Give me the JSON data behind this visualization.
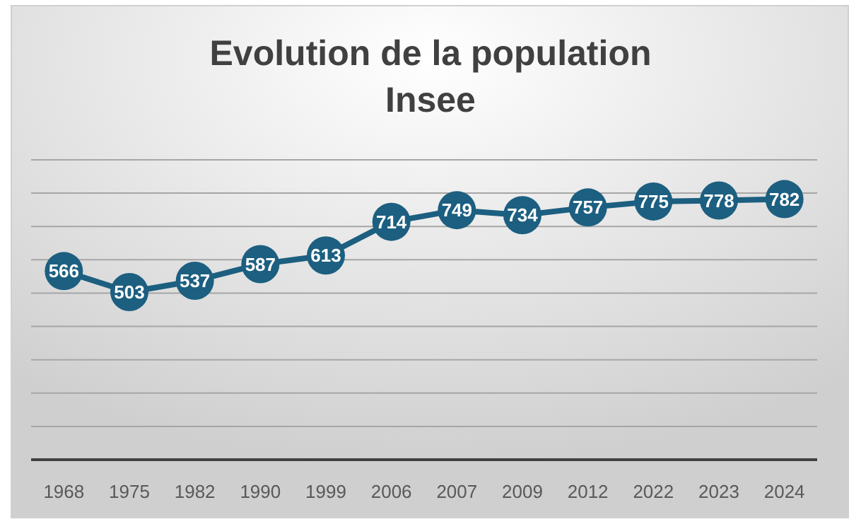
{
  "chart_data": {
    "type": "line",
    "title": "Evolution de la population\nInsee",
    "categories": [
      "1968",
      "1975",
      "1982",
      "1990",
      "1999",
      "2006",
      "2007",
      "2009",
      "2012",
      "2022",
      "2023",
      "2024"
    ],
    "series": [
      {
        "color": "#1c5f80",
        "values": [
          566,
          503,
          537,
          587,
          613,
          714,
          749,
          734,
          757,
          775,
          778,
          782
        ]
      }
    ],
    "ylim": [
      0,
      900
    ],
    "yticks": [
      {
        "value": 0,
        "label": null
      },
      {
        "value": 100,
        "label": null
      },
      {
        "value": 200,
        "label": null
      },
      {
        "value": 300,
        "label": null
      },
      {
        "value": 400,
        "label": null
      },
      {
        "value": 500,
        "label": null
      },
      {
        "value": 600,
        "label": null
      },
      {
        "value": 700,
        "label": null
      },
      {
        "value": 800,
        "label": null
      },
      {
        "value": 900,
        "label": null
      }
    ],
    "grid": "y",
    "marker": "circle",
    "line_style": "solid",
    "data_labels": true
  }
}
